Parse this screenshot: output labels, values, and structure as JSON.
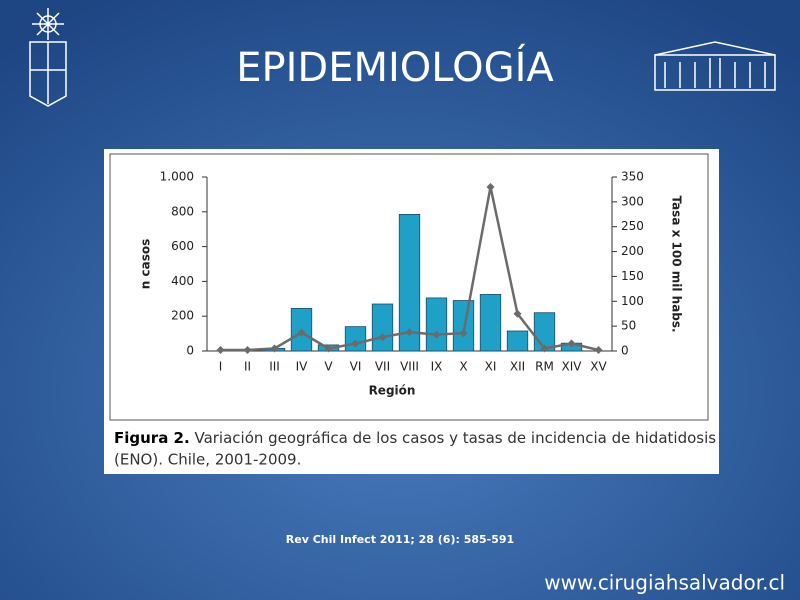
{
  "title": "EPIDEMIOLOGÍA",
  "citation": "Rev Chil Infect 2011; 28 (6): 585-591",
  "website": "www.cirugiahsalvador.cl",
  "chart_data": {
    "type": "bar",
    "xlabel": "Región",
    "ylabel": "n casos",
    "y2label": "Tasa x 100 mil habs.",
    "categories": [
      "I",
      "II",
      "III",
      "IV",
      "V",
      "VI",
      "VII",
      "VIII",
      "IX",
      "X",
      "XI",
      "XII",
      "RM",
      "XIV",
      "XV"
    ],
    "series": [
      {
        "type": "bar",
        "color": "#1fa0c6",
        "values": [
          0,
          0,
          15,
          245,
          35,
          140,
          270,
          785,
          305,
          290,
          325,
          115,
          220,
          45,
          0
        ]
      },
      {
        "type": "line",
        "axis": "y2",
        "color": "#6b6b6b",
        "values": [
          2,
          2,
          5,
          37,
          5,
          15,
          28,
          38,
          33,
          36,
          330,
          75,
          5,
          15,
          2
        ]
      }
    ],
    "ylim": [
      0,
      1000
    ],
    "yticks": [
      0,
      200,
      400,
      600,
      800,
      {
        "value": 1000,
        "label": "1.000"
      }
    ],
    "y2lim": [
      0,
      350
    ],
    "y2ticks": [
      0,
      50,
      100,
      150,
      200,
      250,
      300,
      350
    ],
    "caption": {
      "label": "Figura 2.",
      "lines": [
        "Variación geográfica de los casos y tasas de incidencia de hidatidosis",
        "(ENO). Chile, 2001-2009."
      ]
    }
  }
}
